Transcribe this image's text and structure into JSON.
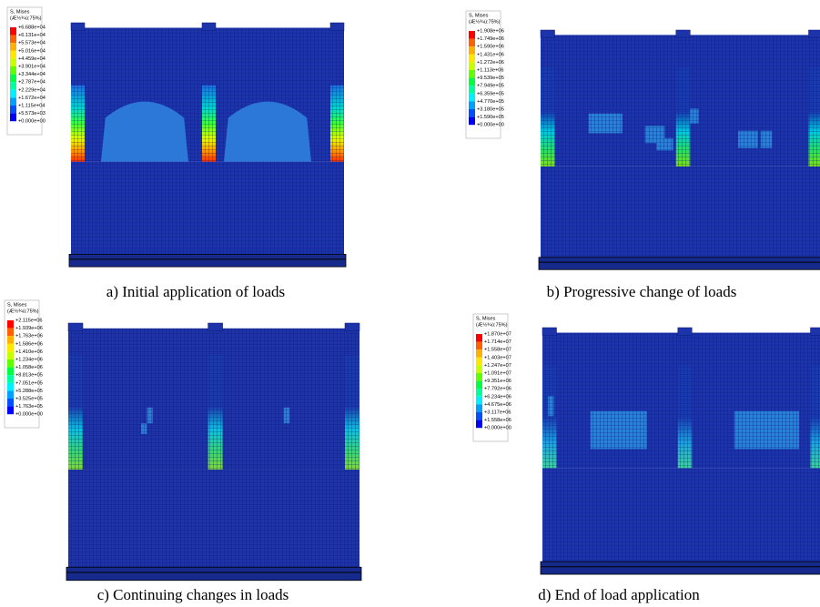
{
  "panels": [
    {
      "legend": {
        "title": "S, Mises",
        "subtitle": "(Æ½¾ù:75%)",
        "labels": [
          "+6.688e+04",
          "+6.131e+04",
          "+5.573e+04",
          "+5.016e+04",
          "+4.459e+04",
          "+3.901e+04",
          "+3.344e+04",
          "+2.787e+04",
          "+2.229e+04",
          "+1.672e+04",
          "+1.115e+04",
          "+5.573e+03",
          "+0.000e+00"
        ]
      },
      "caption": "a) Initial application of loads"
    },
    {
      "legend": {
        "title": "S, Mises",
        "subtitle": "(Æ½¾ù:75%)",
        "labels": [
          "+1.908e+06",
          "+1.749e+06",
          "+1.590e+06",
          "+1.431e+06",
          "+1.272e+06",
          "+1.113e+06",
          "+9.539e+05",
          "+7.949e+05",
          "+6.359e+05",
          "+4.770e+05",
          "+3.180e+05",
          "+1.590e+05",
          "+0.000e+00"
        ]
      },
      "caption": "b) Progressive change of loads"
    },
    {
      "legend": {
        "title": "S, Mises",
        "subtitle": "(Æ½¾ù:75%)",
        "labels": [
          "+2.115e+06",
          "+1.939e+06",
          "+1.763e+06",
          "+1.586e+06",
          "+1.410e+06",
          "+1.234e+06",
          "+1.058e+06",
          "+8.813e+05",
          "+7.051e+05",
          "+5.288e+05",
          "+3.525e+05",
          "+1.763e+05",
          "+0.000e+00"
        ]
      },
      "caption": "c) Continuing changes in loads"
    },
    {
      "legend": {
        "title": "S, Mises",
        "subtitle": "(Æ½¾ù:75%)",
        "labels": [
          "+1.870e+07",
          "+1.714e+07",
          "+1.558e+07",
          "+1.403e+07",
          "+1.247e+07",
          "+1.091e+07",
          "+9.351e+06",
          "+7.792e+06",
          "+6.234e+06",
          "+4.675e+06",
          "+3.117e+06",
          "+1.558e+06",
          "+0.000e+00"
        ]
      },
      "caption": "d) End of load application"
    }
  ]
}
